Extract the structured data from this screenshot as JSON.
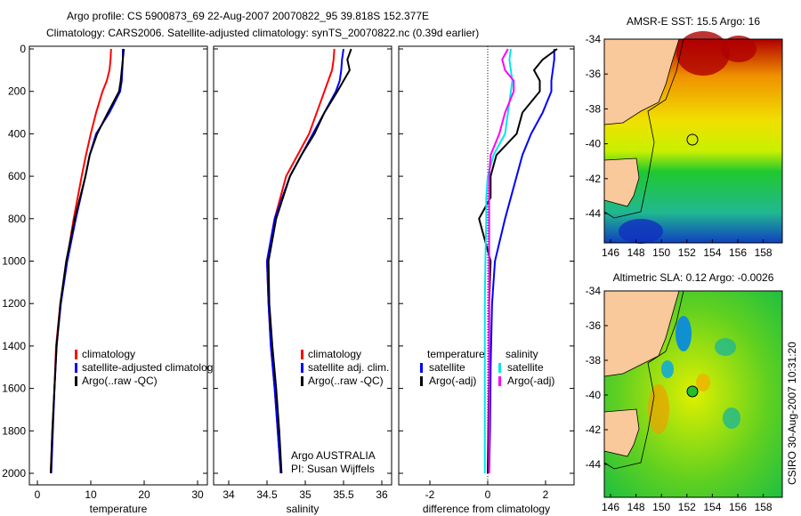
{
  "title_line1": "Argo profile: CS 5900873_69 22-Aug-2007 20070822_95 39.818S 152.377E",
  "title_line2": "Climatology: CARS2006. Satellite-adjusted climatology: synTS_20070822.nc (0.39d earlier)",
  "credit": "CSIRO 30-Aug-2007 10:31:20",
  "colors": {
    "climatology": "#ff0000",
    "satellite": "#0000ff",
    "argo": "#000000",
    "sal_satellite": "#00e5ee",
    "sal_argo": "#ff00ff",
    "land": "#f9c89b"
  },
  "chart_data": [
    {
      "type": "line",
      "xlabel": "temperature",
      "ylabel": "",
      "xlim": [
        -1,
        32
      ],
      "ylim": [
        2000,
        0
      ],
      "xticks": [
        "0",
        "10",
        "20",
        "30"
      ],
      "xtick_values": [
        0,
        10,
        20,
        30
      ],
      "yticks": [
        "0",
        "200",
        "400",
        "600",
        "800",
        "1000",
        "1200",
        "1400",
        "1600",
        "1800",
        "2000"
      ],
      "legend": [
        "climatology",
        "satellite-adjusted climatology",
        "Argo(..raw -QC)"
      ],
      "depth": [
        0,
        50,
        100,
        150,
        200,
        300,
        400,
        500,
        600,
        800,
        1000,
        1200,
        1400,
        1600,
        1800,
        2000
      ],
      "series": [
        {
          "name": "climatology",
          "values": [
            13.8,
            13.7,
            13.5,
            13.0,
            12.2,
            11.0,
            10.0,
            9.1,
            8.3,
            6.8,
            5.5,
            4.3,
            3.5,
            3.2,
            2.8,
            2.5
          ]
        },
        {
          "name": "satellite-adjusted climatology",
          "values": [
            16.0,
            16.0,
            15.9,
            15.8,
            15.5,
            13.5,
            11.0,
            9.8,
            9.0,
            7.2,
            5.6,
            4.4,
            3.6,
            3.2,
            2.9,
            2.6
          ]
        },
        {
          "name": "Argo(..raw -QC)",
          "values": [
            16.2,
            16.0,
            15.8,
            15.6,
            15.3,
            13.2,
            11.2,
            9.8,
            9.0,
            7.0,
            5.4,
            4.3,
            3.6,
            3.2,
            2.8,
            2.5
          ]
        }
      ]
    },
    {
      "type": "line",
      "xlabel": "salinity",
      "xlim": [
        33.8,
        36.1
      ],
      "ylim": [
        2000,
        0
      ],
      "xticks": [
        "34",
        "34.5",
        "35",
        "35.5",
        "36"
      ],
      "xtick_values": [
        34,
        34.5,
        35,
        35.5,
        36
      ],
      "legend": [
        "climatology",
        "satellite adj. clim.",
        "Argo(..raw -QC)"
      ],
      "annotation": [
        "Argo AUSTRALIA",
        "PI: Susan Wijffels"
      ],
      "depth": [
        0,
        50,
        100,
        150,
        200,
        300,
        400,
        500,
        600,
        800,
        1000,
        1200,
        1400,
        1600,
        1800,
        2000
      ],
      "series": [
        {
          "name": "climatology",
          "values": [
            35.38,
            35.37,
            35.35,
            35.3,
            35.25,
            35.15,
            35.05,
            34.9,
            34.75,
            34.6,
            34.5,
            34.52,
            34.55,
            34.6,
            34.64,
            34.68
          ]
        },
        {
          "name": "satellite adj. clim.",
          "values": [
            35.5,
            35.48,
            35.47,
            35.45,
            35.4,
            35.25,
            35.1,
            34.95,
            34.8,
            34.6,
            34.5,
            34.52,
            34.55,
            34.6,
            34.64,
            34.68
          ]
        },
        {
          "name": "Argo(..raw -QC)",
          "values": [
            35.6,
            35.55,
            35.58,
            35.5,
            35.42,
            35.25,
            35.12,
            34.95,
            34.8,
            34.62,
            34.52,
            34.53,
            34.57,
            34.62,
            34.66,
            34.69
          ]
        }
      ]
    },
    {
      "type": "line",
      "xlabel": "difference from climatology",
      "xlim": [
        -3,
        3
      ],
      "ylim": [
        2000,
        0
      ],
      "xticks": [
        "-2",
        "0",
        "2"
      ],
      "xtick_values": [
        -2,
        0,
        2
      ],
      "legend_headers": [
        "temperature",
        "salinity"
      ],
      "legend": [
        "satellite",
        "Argo(-adj)",
        "satellite",
        "Argo(-adj)"
      ],
      "depth": [
        0,
        50,
        100,
        150,
        200,
        300,
        400,
        500,
        600,
        700,
        800,
        1000,
        1200,
        1500,
        1800,
        2000
      ],
      "series": [
        {
          "name": "temperature satellite",
          "values": [
            2.3,
            2.3,
            2.25,
            2.2,
            2.2,
            1.9,
            1.5,
            1.2,
            1.0,
            0.8,
            0.6,
            0.25,
            0.15,
            0.1,
            0.08,
            0.05
          ]
        },
        {
          "name": "temperature Argo(-adj)",
          "values": [
            2.4,
            1.9,
            1.6,
            1.8,
            1.8,
            1.2,
            1.0,
            0.3,
            0.1,
            0.1,
            -0.3,
            0.1,
            0.05,
            0.05,
            0.02,
            0.0
          ]
        },
        {
          "name": "salinity satellite",
          "values": [
            0.8,
            0.75,
            0.8,
            0.85,
            0.8,
            0.7,
            0.6,
            0.2,
            0.0,
            -0.05,
            -0.05,
            -0.08,
            -0.1,
            -0.1,
            -0.1,
            -0.1
          ]
        },
        {
          "name": "salinity Argo(-adj)",
          "values": [
            0.7,
            0.5,
            0.6,
            0.9,
            0.9,
            0.6,
            0.4,
            0.1,
            0.05,
            0.05,
            0.05,
            0.05,
            0.05,
            0.05,
            0.05,
            0.05
          ]
        }
      ]
    },
    {
      "type": "heatmap",
      "title": "AMSR-E SST: 15.5 Argo: 16",
      "xticks": [
        "146",
        "148",
        "150",
        "152",
        "154",
        "156",
        "158"
      ],
      "yticks": [
        "-34",
        "-36",
        "-38",
        "-40",
        "-42",
        "-44"
      ],
      "float_position": {
        "lon": 152.377,
        "lat": -39.818
      }
    },
    {
      "type": "heatmap",
      "title": "Altimetric SLA: 0.12 Argo: -0.0026",
      "xticks": [
        "146",
        "148",
        "150",
        "152",
        "154",
        "156",
        "158"
      ],
      "yticks": [
        "-34",
        "-36",
        "-38",
        "-40",
        "-42",
        "-44"
      ],
      "float_position": {
        "lon": 152.377,
        "lat": -39.818
      }
    }
  ]
}
